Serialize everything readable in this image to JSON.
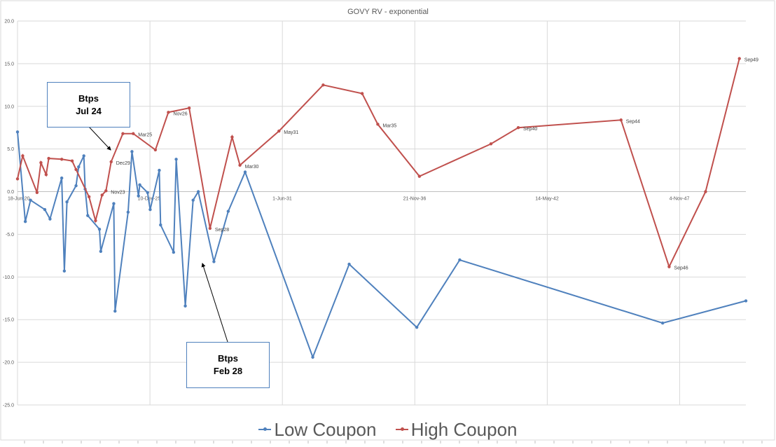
{
  "chart_data": {
    "type": "line",
    "title": "GOVY RV - exponential",
    "ylim": [
      -25,
      20
    ],
    "yticks": [
      "20.0",
      "15.0",
      "10.0",
      "5.0",
      "0.0",
      "-5.0",
      "-10.0",
      "-15.0",
      "-20.0",
      "-25.0"
    ],
    "xticks": [
      "18-Jun-20",
      "10-Dec-25",
      "1-Jun-31",
      "21-Nov-36",
      "14-May-42",
      "4-Nov-47"
    ],
    "series": [
      {
        "name": "Low Coupon",
        "color": "#4f81bd",
        "points": [
          [
            0.0,
            7.0
          ],
          [
            0.6,
            -3.5
          ],
          [
            1.0,
            -1.0
          ],
          [
            2.1,
            -2.1
          ],
          [
            2.5,
            -3.2
          ],
          [
            3.4,
            1.6
          ],
          [
            3.6,
            -9.3
          ],
          [
            3.8,
            -1.2
          ],
          [
            4.5,
            0.7
          ],
          [
            4.7,
            2.9
          ],
          [
            5.1,
            4.2
          ],
          [
            5.2,
            0.3
          ],
          [
            5.4,
            -2.8
          ],
          [
            6.3,
            -4.4
          ],
          [
            6.4,
            -7.0
          ],
          [
            7.4,
            -1.4
          ],
          [
            7.5,
            -14.0
          ],
          [
            8.5,
            -2.4
          ],
          [
            8.8,
            4.7
          ],
          [
            9.3,
            -0.5
          ],
          [
            9.4,
            0.8
          ],
          [
            10.0,
            -0.1
          ],
          [
            10.2,
            -2.1
          ],
          [
            10.9,
            2.5
          ],
          [
            11.0,
            -3.9
          ],
          [
            12.0,
            -7.1
          ],
          [
            12.2,
            3.8
          ],
          [
            12.9,
            -13.4
          ],
          [
            13.5,
            -1.0
          ],
          [
            13.9,
            0.0
          ],
          [
            15.1,
            -8.2
          ],
          [
            16.2,
            -2.3
          ],
          [
            17.5,
            2.3
          ],
          [
            22.7,
            -19.4
          ],
          [
            25.5,
            -8.5
          ],
          [
            30.7,
            -15.9
          ],
          [
            34.0,
            -8.0
          ],
          [
            49.6,
            -15.4
          ],
          [
            56.0,
            -12.8
          ]
        ]
      },
      {
        "name": "High Coupon",
        "color": "#c0504d",
        "points": [
          [
            0.0,
            1.5
          ],
          [
            0.4,
            4.2
          ],
          [
            1.5,
            -0.1
          ],
          [
            1.8,
            3.4
          ],
          [
            2.2,
            2.0
          ],
          [
            2.4,
            3.9
          ],
          [
            3.4,
            3.8
          ],
          [
            4.2,
            3.6
          ],
          [
            4.5,
            2.6
          ],
          [
            5.5,
            -0.6
          ],
          [
            6.0,
            -3.4
          ],
          [
            6.5,
            -0.4
          ],
          [
            6.8,
            0.1
          ],
          [
            7.2,
            3.5
          ],
          [
            8.1,
            6.8
          ],
          [
            8.9,
            6.8
          ],
          [
            10.6,
            4.9
          ],
          [
            11.6,
            9.3
          ],
          [
            13.2,
            9.8
          ],
          [
            14.8,
            -4.3
          ],
          [
            16.5,
            6.4
          ],
          [
            17.1,
            3.1
          ],
          [
            20.1,
            7.1
          ],
          [
            23.5,
            12.5
          ],
          [
            26.5,
            11.5
          ],
          [
            27.7,
            7.9
          ],
          [
            30.9,
            1.8
          ],
          [
            36.4,
            5.6
          ],
          [
            38.5,
            7.5
          ],
          [
            46.4,
            8.4
          ],
          [
            50.1,
            -8.8
          ],
          [
            52.9,
            0.0
          ],
          [
            55.5,
            15.6
          ]
        ]
      }
    ],
    "point_labels": [
      {
        "text": "Dec29",
        "series": 1,
        "index": 13
      },
      {
        "text": "Nov23",
        "series": 1,
        "index": 12
      },
      {
        "text": "Mar25",
        "series": 1,
        "index": 15
      },
      {
        "text": "Nov26",
        "series": 1,
        "index": 17
      },
      {
        "text": "Sep28",
        "series": 1,
        "index": 19
      },
      {
        "text": "Mar30",
        "series": 1,
        "index": 21
      },
      {
        "text": "May31",
        "series": 1,
        "index": 22
      },
      {
        "text": "Mar35",
        "series": 1,
        "index": 25
      },
      {
        "text": "Sep40",
        "series": 1,
        "index": 28
      },
      {
        "text": "Sep44",
        "series": 1,
        "index": 29
      },
      {
        "text": "Sep46",
        "series": 1,
        "index": 30
      },
      {
        "text": "Sep49",
        "series": 1,
        "index": 32
      }
    ]
  },
  "callouts": [
    {
      "line1": "Btps",
      "line2": "Jul 24"
    },
    {
      "line1": "Btps",
      "line2": "Feb 28"
    }
  ],
  "legend": {
    "low": "Low Coupon",
    "high": "High Coupon"
  }
}
